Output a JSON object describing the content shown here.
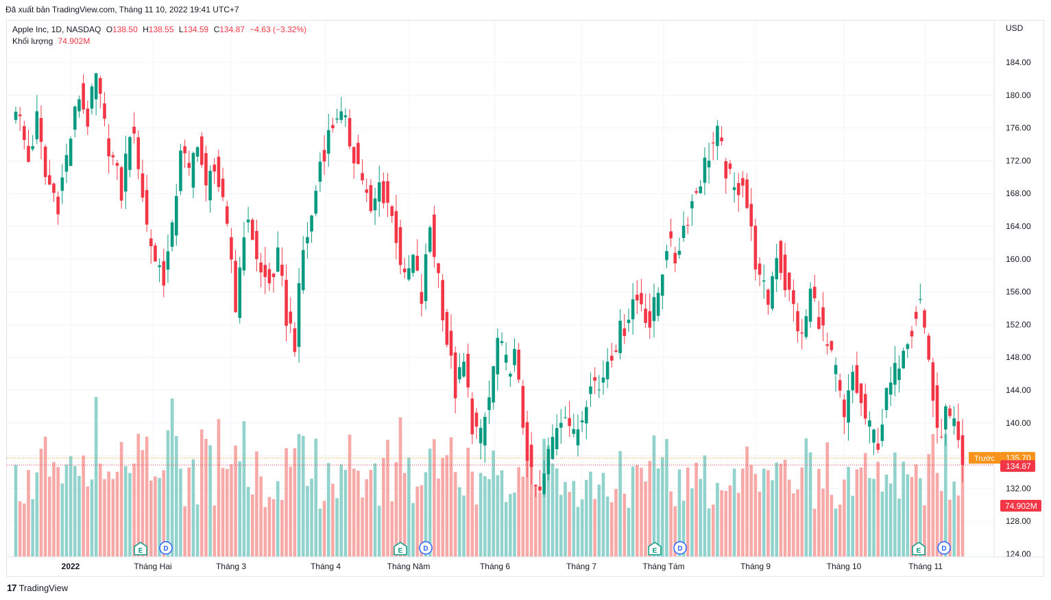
{
  "header": {
    "published": "Đã xuất bản TradingView.com, Tháng 11 10, 2022 19:41 UTC+7"
  },
  "legend": {
    "symbol": "Apple Inc, 1D, NASDAQ",
    "o_label": "O",
    "o_value": "138.50",
    "h_label": "H",
    "h_value": "138.55",
    "l_label": "L",
    "l_value": "134.59",
    "c_label": "C",
    "c_value": "134.87",
    "change": "−4.63 (−3.32%)",
    "volume_label": "Khối lượng",
    "volume_value": "74.902M"
  },
  "price_axis": {
    "currency": "USD",
    "prev_label": "Trước",
    "prev_value": "135.70",
    "last_value": "134.87",
    "volume_tag": "74.902M"
  },
  "footer": {
    "brand": "TradingView",
    "brand_icon": "tradingview-logo-icon"
  },
  "colors": {
    "up": "#089981",
    "down": "#f23645",
    "vol_up": "#92d2cc",
    "vol_down": "#f7a9a7",
    "prev": "#f7931a"
  },
  "chart_data": {
    "type": "candlestick",
    "title": "Apple Inc, 1D, NASDAQ",
    "ylabel": "USD",
    "ylim": [
      124,
      188
    ],
    "y_ticks": [
      124,
      128,
      132,
      136,
      140,
      144,
      148,
      152,
      156,
      160,
      164,
      168,
      172,
      176,
      180,
      184
    ],
    "x_ticks": [
      "2022",
      "Tháng Hai",
      "Tháng 3",
      "Tháng 4",
      "Tháng Năm",
      "Tháng 6",
      "Tháng 7",
      "Tháng Tám",
      "Tháng 9",
      "Tháng 10",
      "Tháng 11"
    ],
    "previous_close": 135.7,
    "last_close": 134.87,
    "event_markers": [
      {
        "month": "Tháng Hai",
        "labels": [
          "E",
          "D"
        ]
      },
      {
        "month": "Tháng Năm",
        "labels": [
          "E",
          "D"
        ]
      },
      {
        "month": "Tháng Tám",
        "labels": [
          "E",
          "D"
        ]
      },
      {
        "month": "Tháng 11",
        "labels": [
          "E",
          "D"
        ]
      }
    ],
    "anchors": [
      [
        0,
        179
      ],
      [
        3,
        172
      ],
      [
        5,
        177
      ],
      [
        7,
        170
      ],
      [
        10,
        167
      ],
      [
        13,
        175
      ],
      [
        15,
        180
      ],
      [
        17,
        177
      ],
      [
        19,
        182
      ],
      [
        21,
        176
      ],
      [
        23,
        172
      ],
      [
        25,
        168
      ],
      [
        27,
        176
      ],
      [
        29,
        172
      ],
      [
        31,
        164
      ],
      [
        33,
        160
      ],
      [
        35,
        158
      ],
      [
        37,
        163
      ],
      [
        39,
        174
      ],
      [
        41,
        170
      ],
      [
        43,
        175
      ],
      [
        45,
        168
      ],
      [
        47,
        172
      ],
      [
        49,
        166
      ],
      [
        51,
        160
      ],
      [
        52,
        154
      ],
      [
        54,
        164
      ],
      [
        56,
        163
      ],
      [
        58,
        158
      ],
      [
        60,
        157
      ],
      [
        62,
        160
      ],
      [
        64,
        153
      ],
      [
        66,
        150
      ],
      [
        68,
        161
      ],
      [
        70,
        165
      ],
      [
        72,
        172
      ],
      [
        74,
        175
      ],
      [
        76,
        178
      ],
      [
        78,
        176
      ],
      [
        80,
        173
      ],
      [
        82,
        170
      ],
      [
        84,
        165
      ],
      [
        86,
        169
      ],
      [
        88,
        167
      ],
      [
        90,
        163
      ],
      [
        92,
        157
      ],
      [
        94,
        160
      ],
      [
        96,
        155
      ],
      [
        98,
        164
      ],
      [
        100,
        158
      ],
      [
        102,
        150
      ],
      [
        104,
        144
      ],
      [
        106,
        147
      ],
      [
        108,
        140
      ],
      [
        110,
        138
      ],
      [
        112,
        143
      ],
      [
        114,
        150
      ],
      [
        116,
        147
      ],
      [
        118,
        148
      ],
      [
        120,
        140
      ],
      [
        122,
        133
      ],
      [
        124,
        131
      ],
      [
        126,
        136
      ],
      [
        128,
        140
      ],
      [
        130,
        142
      ],
      [
        132,
        138
      ],
      [
        134,
        141
      ],
      [
        136,
        146
      ],
      [
        138,
        144
      ],
      [
        140,
        148
      ],
      [
        142,
        150
      ],
      [
        144,
        152
      ],
      [
        146,
        155
      ],
      [
        148,
        155
      ],
      [
        150,
        152
      ],
      [
        152,
        156
      ],
      [
        154,
        162
      ],
      [
        156,
        160
      ],
      [
        158,
        164
      ],
      [
        160,
        167
      ],
      [
        162,
        170
      ],
      [
        164,
        173
      ],
      [
        166,
        175
      ],
      [
        168,
        171
      ],
      [
        170,
        168
      ],
      [
        172,
        170
      ],
      [
        174,
        163
      ],
      [
        176,
        157
      ],
      [
        178,
        155
      ],
      [
        180,
        161
      ],
      [
        182,
        157
      ],
      [
        184,
        154
      ],
      [
        186,
        150
      ],
      [
        188,
        156
      ],
      [
        190,
        153
      ],
      [
        192,
        149
      ],
      [
        194,
        146
      ],
      [
        196,
        140
      ],
      [
        198,
        146
      ],
      [
        200,
        142
      ],
      [
        202,
        139
      ],
      [
        204,
        138
      ],
      [
        206,
        143
      ],
      [
        208,
        146
      ],
      [
        210,
        150
      ],
      [
        212,
        152
      ],
      [
        214,
        155
      ],
      [
        216,
        148
      ],
      [
        218,
        138
      ],
      [
        220,
        141
      ],
      [
        222,
        139
      ],
      [
        224,
        135
      ]
    ]
  }
}
